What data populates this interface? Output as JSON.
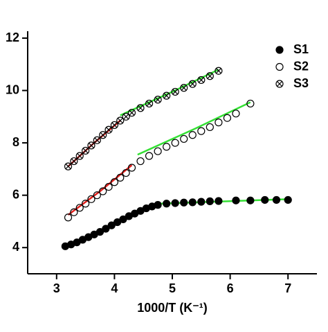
{
  "chart_data": {
    "type": "scatter",
    "xlabel": "1000/T (K⁻¹)",
    "xlim": [
      2.5,
      7.5
    ],
    "xticks": [
      3,
      4,
      5,
      6,
      7
    ],
    "ylim": [
      3,
      12
    ],
    "yticks": [
      4,
      6,
      8,
      10,
      12
    ],
    "legend": "upper right",
    "series": [
      {
        "name": "S1",
        "color": "#000000",
        "marker": "filled",
        "x": [
          3.15,
          3.25,
          3.35,
          3.45,
          3.55,
          3.65,
          3.75,
          3.85,
          3.95,
          4.05,
          4.15,
          4.25,
          4.35,
          4.45,
          4.55,
          4.65,
          4.75,
          4.9,
          5.05,
          5.2,
          5.35,
          5.5,
          5.65,
          5.8,
          6.1,
          6.35,
          6.6,
          6.8,
          7.0
        ],
        "values": [
          4.05,
          4.12,
          4.2,
          4.3,
          4.4,
          4.5,
          4.6,
          4.72,
          4.85,
          4.97,
          5.08,
          5.2,
          5.3,
          5.4,
          5.5,
          5.57,
          5.63,
          5.68,
          5.7,
          5.72,
          5.73,
          5.75,
          5.77,
          5.78,
          5.8,
          5.8,
          5.82,
          5.82,
          5.82
        ]
      },
      {
        "name": "S2",
        "color": "#000000",
        "marker": "open",
        "x": [
          3.2,
          3.3,
          3.4,
          3.5,
          3.6,
          3.7,
          3.8,
          3.9,
          4.0,
          4.1,
          4.2,
          4.3,
          4.45,
          4.6,
          4.75,
          4.9,
          5.05,
          5.2,
          5.35,
          5.5,
          5.65,
          5.8,
          5.95,
          6.1,
          6.35
        ],
        "values": [
          5.15,
          5.35,
          5.52,
          5.68,
          5.85,
          6.0,
          6.15,
          6.32,
          6.5,
          6.67,
          6.85,
          7.05,
          7.3,
          7.5,
          7.68,
          7.85,
          8.0,
          8.15,
          8.3,
          8.45,
          8.6,
          8.78,
          8.95,
          9.12,
          9.5
        ]
      },
      {
        "name": "S3",
        "color": "#000000",
        "marker": "crossed",
        "x": [
          3.2,
          3.3,
          3.4,
          3.5,
          3.6,
          3.7,
          3.8,
          3.9,
          4.0,
          4.1,
          4.2,
          4.3,
          4.45,
          4.6,
          4.75,
          4.9,
          5.05,
          5.2,
          5.35,
          5.5,
          5.65,
          5.8
        ],
        "values": [
          7.1,
          7.3,
          7.5,
          7.7,
          7.9,
          8.1,
          8.3,
          8.5,
          8.68,
          8.85,
          9.0,
          9.15,
          9.33,
          9.5,
          9.65,
          9.8,
          9.95,
          10.1,
          10.25,
          10.4,
          10.55,
          10.75
        ]
      }
    ],
    "fit_lines": [
      {
        "color": "#e0201c",
        "x": [
          3.2,
          3.75,
          4.3
        ],
        "values": [
          4.07,
          4.62,
          5.25
        ]
      },
      {
        "color": "#33e033",
        "x": [
          4.8,
          7.0
        ],
        "values": [
          5.68,
          5.85
        ]
      },
      {
        "color": "#e0201c",
        "x": [
          3.2,
          3.75,
          4.3
        ],
        "values": [
          5.25,
          6.15,
          7.15
        ]
      },
      {
        "color": "#33e033",
        "x": [
          4.4,
          5.4,
          6.35
        ],
        "values": [
          7.55,
          8.55,
          9.55
        ]
      },
      {
        "color": "#e0201c",
        "x": [
          3.2,
          3.65,
          4.1
        ],
        "values": [
          7.1,
          8.0,
          8.85
        ]
      },
      {
        "color": "#33e033",
        "x": [
          4.1,
          5.0,
          5.8
        ],
        "values": [
          9.05,
          9.95,
          10.8
        ]
      }
    ]
  }
}
